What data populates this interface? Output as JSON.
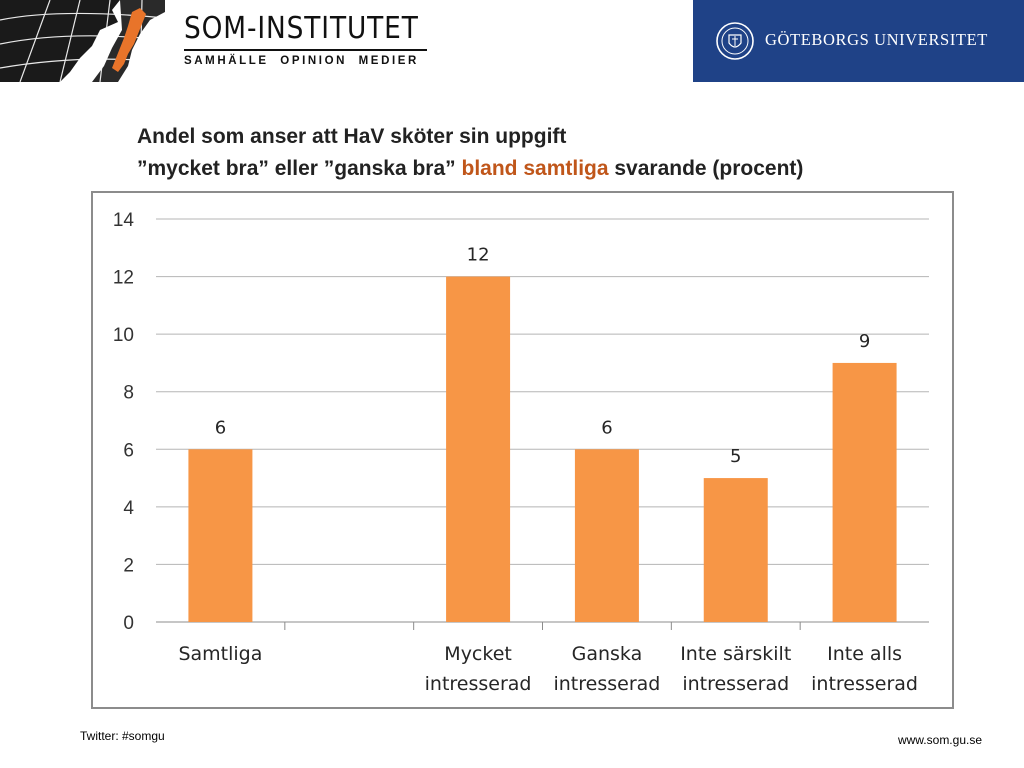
{
  "header": {
    "som_name": "SOM-INSTITUTET",
    "som_tagline": "SAMHÄLLE  OPINION  MEDIER",
    "university_name": "GÖTEBORGS UNIVERSITET",
    "university_bg": "#1f4287"
  },
  "title": {
    "line1": "Andel som anser att HaV sköter sin uppgift",
    "line2_part1": "”mycket bra” eller ”ganska bra” ",
    "line2_highlight": "bland samtliga",
    "line2_part2": " svarande (procent)",
    "highlight_color": "#c0561a"
  },
  "chart_data": {
    "type": "bar",
    "categories": [
      [
        "Samtliga"
      ],
      [
        ""
      ],
      [
        "Mycket",
        "intresserad"
      ],
      [
        "Ganska",
        "intresserad"
      ],
      [
        "Inte särskilt",
        "intresserad"
      ],
      [
        "Inte alls",
        "intresserad"
      ]
    ],
    "values": [
      6,
      null,
      12,
      6,
      5,
      9
    ],
    "data_labels": [
      "6",
      "",
      "12",
      "6",
      "5",
      "9"
    ],
    "ylim": [
      0,
      14
    ],
    "yticks": [
      0,
      2,
      4,
      6,
      8,
      10,
      12,
      14
    ],
    "grid": true,
    "bar_color": "#f79646",
    "grid_color": "#b5b5b5"
  },
  "footer": {
    "twitter": "Twitter: #somgu",
    "website": "www.som.gu.se"
  }
}
